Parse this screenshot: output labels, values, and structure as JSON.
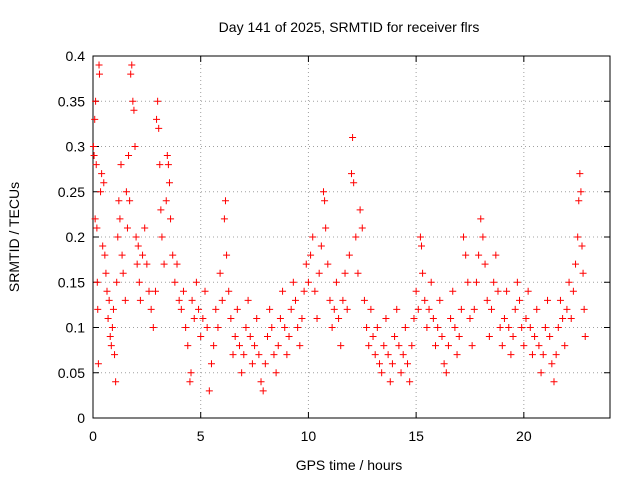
{
  "chart_data": {
    "type": "scatter",
    "title": "Day 141 of 2025, SRMTID for receiver flrs",
    "xlabel": "GPS time / hours",
    "ylabel": "SRMTID / TECUs",
    "xlim": [
      0,
      24
    ],
    "ylim": [
      0,
      0.4
    ],
    "xticks": [
      0,
      5,
      10,
      15,
      20
    ],
    "yticks": [
      0,
      0.05,
      0.1,
      0.15,
      0.2,
      0.25,
      0.3,
      0.35,
      0.4
    ],
    "xtick_labels": [
      "0",
      "5",
      "10",
      "15",
      "20"
    ],
    "ytick_labels": [
      "0",
      "0.05",
      "0.1",
      "0.15",
      "0.2",
      "0.25",
      "0.3",
      "0.35",
      "0.4"
    ],
    "grid": true,
    "marker": "plus",
    "color": "#ff0000",
    "series": [
      {
        "points": [
          [
            0.02,
            0.3
          ],
          [
            0.05,
            0.29
          ],
          [
            0.08,
            0.33
          ],
          [
            0.1,
            0.22
          ],
          [
            0.12,
            0.35
          ],
          [
            0.15,
            0.28
          ],
          [
            0.18,
            0.21
          ],
          [
            0.2,
            0.15
          ],
          [
            0.22,
            0.12
          ],
          [
            0.25,
            0.06
          ],
          [
            0.28,
            0.39
          ],
          [
            0.3,
            0.38
          ],
          [
            0.35,
            0.25
          ],
          [
            0.4,
            0.27
          ],
          [
            0.45,
            0.19
          ],
          [
            0.5,
            0.26
          ],
          [
            0.55,
            0.18
          ],
          [
            0.6,
            0.16
          ],
          [
            0.65,
            0.14
          ],
          [
            0.7,
            0.11
          ],
          [
            0.75,
            0.13
          ],
          [
            0.8,
            0.09
          ],
          [
            0.85,
            0.08
          ],
          [
            0.9,
            0.1
          ],
          [
            0.95,
            0.12
          ],
          [
            1.0,
            0.07
          ],
          [
            1.05,
            0.04
          ],
          [
            1.1,
            0.15
          ],
          [
            1.15,
            0.2
          ],
          [
            1.2,
            0.24
          ],
          [
            1.25,
            0.22
          ],
          [
            1.3,
            0.28
          ],
          [
            1.35,
            0.18
          ],
          [
            1.4,
            0.16
          ],
          [
            1.5,
            0.13
          ],
          [
            1.55,
            0.25
          ],
          [
            1.6,
            0.21
          ],
          [
            1.65,
            0.29
          ],
          [
            1.7,
            0.24
          ],
          [
            1.75,
            0.38
          ],
          [
            1.8,
            0.39
          ],
          [
            1.85,
            0.35
          ],
          [
            1.9,
            0.34
          ],
          [
            1.95,
            0.3
          ],
          [
            2.0,
            0.2
          ],
          [
            2.05,
            0.17
          ],
          [
            2.1,
            0.19
          ],
          [
            2.15,
            0.15
          ],
          [
            2.2,
            0.13
          ],
          [
            2.3,
            0.18
          ],
          [
            2.4,
            0.21
          ],
          [
            2.5,
            0.17
          ],
          [
            2.6,
            0.14
          ],
          [
            2.7,
            0.12
          ],
          [
            2.8,
            0.1
          ],
          [
            2.9,
            0.14
          ],
          [
            2.95,
            0.33
          ],
          [
            3.0,
            0.35
          ],
          [
            3.05,
            0.32
          ],
          [
            3.1,
            0.28
          ],
          [
            3.15,
            0.23
          ],
          [
            3.2,
            0.2
          ],
          [
            3.3,
            0.17
          ],
          [
            3.4,
            0.24
          ],
          [
            3.45,
            0.29
          ],
          [
            3.5,
            0.28
          ],
          [
            3.55,
            0.26
          ],
          [
            3.6,
            0.22
          ],
          [
            3.7,
            0.18
          ],
          [
            3.8,
            0.15
          ],
          [
            3.9,
            0.17
          ],
          [
            4.0,
            0.13
          ],
          [
            4.1,
            0.12
          ],
          [
            4.2,
            0.14
          ],
          [
            4.3,
            0.1
          ],
          [
            4.4,
            0.08
          ],
          [
            4.5,
            0.04
          ],
          [
            4.55,
            0.05
          ],
          [
            4.6,
            0.13
          ],
          [
            4.7,
            0.11
          ],
          [
            4.8,
            0.15
          ],
          [
            4.9,
            0.12
          ],
          [
            5.0,
            0.09
          ],
          [
            5.1,
            0.11
          ],
          [
            5.2,
            0.14
          ],
          [
            5.3,
            0.1
          ],
          [
            5.4,
            0.03
          ],
          [
            5.5,
            0.06
          ],
          [
            5.6,
            0.08
          ],
          [
            5.7,
            0.12
          ],
          [
            5.8,
            0.1
          ],
          [
            5.9,
            0.16
          ],
          [
            6.0,
            0.13
          ],
          [
            6.1,
            0.22
          ],
          [
            6.15,
            0.24
          ],
          [
            6.2,
            0.18
          ],
          [
            6.3,
            0.14
          ],
          [
            6.4,
            0.11
          ],
          [
            6.5,
            0.07
          ],
          [
            6.6,
            0.09
          ],
          [
            6.7,
            0.12
          ],
          [
            6.8,
            0.08
          ],
          [
            6.9,
            0.05
          ],
          [
            7.0,
            0.07
          ],
          [
            7.1,
            0.1
          ],
          [
            7.2,
            0.13
          ],
          [
            7.3,
            0.09
          ],
          [
            7.4,
            0.06
          ],
          [
            7.5,
            0.08
          ],
          [
            7.6,
            0.11
          ],
          [
            7.7,
            0.07
          ],
          [
            7.8,
            0.04
          ],
          [
            7.9,
            0.03
          ],
          [
            8.0,
            0.06
          ],
          [
            8.1,
            0.09
          ],
          [
            8.2,
            0.12
          ],
          [
            8.3,
            0.1
          ],
          [
            8.4,
            0.07
          ],
          [
            8.5,
            0.05
          ],
          [
            8.6,
            0.08
          ],
          [
            8.7,
            0.11
          ],
          [
            8.8,
            0.14
          ],
          [
            8.9,
            0.1
          ],
          [
            9.0,
            0.07
          ],
          [
            9.1,
            0.09
          ],
          [
            9.2,
            0.12
          ],
          [
            9.3,
            0.15
          ],
          [
            9.4,
            0.13
          ],
          [
            9.5,
            0.1
          ],
          [
            9.6,
            0.08
          ],
          [
            9.7,
            0.11
          ],
          [
            9.8,
            0.14
          ],
          [
            9.9,
            0.17
          ],
          [
            10.0,
            0.15
          ],
          [
            10.1,
            0.18
          ],
          [
            10.2,
            0.2
          ],
          [
            10.3,
            0.14
          ],
          [
            10.4,
            0.11
          ],
          [
            10.5,
            0.16
          ],
          [
            10.6,
            0.19
          ],
          [
            10.7,
            0.25
          ],
          [
            10.75,
            0.24
          ],
          [
            10.8,
            0.21
          ],
          [
            10.9,
            0.17
          ],
          [
            11.0,
            0.13
          ],
          [
            11.1,
            0.1
          ],
          [
            11.2,
            0.12
          ],
          [
            11.3,
            0.15
          ],
          [
            11.4,
            0.11
          ],
          [
            11.5,
            0.08
          ],
          [
            11.6,
            0.13
          ],
          [
            11.7,
            0.16
          ],
          [
            11.8,
            0.12
          ],
          [
            11.9,
            0.18
          ],
          [
            12.0,
            0.27
          ],
          [
            12.05,
            0.31
          ],
          [
            12.1,
            0.26
          ],
          [
            12.2,
            0.2
          ],
          [
            12.3,
            0.16
          ],
          [
            12.4,
            0.23
          ],
          [
            12.5,
            0.21
          ],
          [
            12.6,
            0.13
          ],
          [
            12.7,
            0.1
          ],
          [
            12.8,
            0.08
          ],
          [
            12.9,
            0.12
          ],
          [
            13.0,
            0.09
          ],
          [
            13.1,
            0.07
          ],
          [
            13.2,
            0.1
          ],
          [
            13.3,
            0.06
          ],
          [
            13.4,
            0.05
          ],
          [
            13.5,
            0.08
          ],
          [
            13.6,
            0.11
          ],
          [
            13.7,
            0.07
          ],
          [
            13.8,
            0.04
          ],
          [
            13.9,
            0.06
          ],
          [
            14.0,
            0.09
          ],
          [
            14.1,
            0.12
          ],
          [
            14.2,
            0.08
          ],
          [
            14.3,
            0.05
          ],
          [
            14.4,
            0.07
          ],
          [
            14.5,
            0.1
          ],
          [
            14.6,
            0.06
          ],
          [
            14.7,
            0.04
          ],
          [
            14.8,
            0.08
          ],
          [
            14.9,
            0.11
          ],
          [
            15.0,
            0.14
          ],
          [
            15.1,
            0.12
          ],
          [
            15.2,
            0.2
          ],
          [
            15.25,
            0.19
          ],
          [
            15.3,
            0.16
          ],
          [
            15.4,
            0.13
          ],
          [
            15.5,
            0.1
          ],
          [
            15.6,
            0.12
          ],
          [
            15.7,
            0.15
          ],
          [
            15.8,
            0.11
          ],
          [
            15.9,
            0.08
          ],
          [
            16.0,
            0.1
          ],
          [
            16.1,
            0.13
          ],
          [
            16.2,
            0.09
          ],
          [
            16.3,
            0.06
          ],
          [
            16.4,
            0.05
          ],
          [
            16.5,
            0.08
          ],
          [
            16.6,
            0.11
          ],
          [
            16.7,
            0.14
          ],
          [
            16.8,
            0.1
          ],
          [
            16.9,
            0.07
          ],
          [
            17.0,
            0.09
          ],
          [
            17.1,
            0.12
          ],
          [
            17.2,
            0.2
          ],
          [
            17.3,
            0.18
          ],
          [
            17.4,
            0.15
          ],
          [
            17.5,
            0.11
          ],
          [
            17.6,
            0.08
          ],
          [
            17.7,
            0.12
          ],
          [
            17.8,
            0.15
          ],
          [
            17.9,
            0.18
          ],
          [
            18.0,
            0.22
          ],
          [
            18.1,
            0.2
          ],
          [
            18.2,
            0.17
          ],
          [
            18.3,
            0.13
          ],
          [
            18.4,
            0.09
          ],
          [
            18.5,
            0.12
          ],
          [
            18.6,
            0.15
          ],
          [
            18.7,
            0.18
          ],
          [
            18.8,
            0.14
          ],
          [
            18.9,
            0.1
          ],
          [
            19.0,
            0.08
          ],
          [
            19.1,
            0.11
          ],
          [
            19.2,
            0.14
          ],
          [
            19.3,
            0.1
          ],
          [
            19.4,
            0.07
          ],
          [
            19.5,
            0.09
          ],
          [
            19.6,
            0.12
          ],
          [
            19.7,
            0.15
          ],
          [
            19.8,
            0.13
          ],
          [
            19.9,
            0.1
          ],
          [
            20.0,
            0.08
          ],
          [
            20.1,
            0.11
          ],
          [
            20.2,
            0.14
          ],
          [
            20.3,
            0.1
          ],
          [
            20.4,
            0.07
          ],
          [
            20.5,
            0.09
          ],
          [
            20.6,
            0.12
          ],
          [
            20.7,
            0.08
          ],
          [
            20.8,
            0.05
          ],
          [
            20.9,
            0.07
          ],
          [
            21.0,
            0.1
          ],
          [
            21.1,
            0.13
          ],
          [
            21.2,
            0.09
          ],
          [
            21.3,
            0.06
          ],
          [
            21.4,
            0.04
          ],
          [
            21.5,
            0.07
          ],
          [
            21.6,
            0.1
          ],
          [
            21.7,
            0.13
          ],
          [
            21.8,
            0.11
          ],
          [
            21.9,
            0.08
          ],
          [
            22.0,
            0.12
          ],
          [
            22.1,
            0.15
          ],
          [
            22.2,
            0.11
          ],
          [
            22.3,
            0.14
          ],
          [
            22.4,
            0.17
          ],
          [
            22.5,
            0.2
          ],
          [
            22.55,
            0.24
          ],
          [
            22.6,
            0.27
          ],
          [
            22.65,
            0.25
          ],
          [
            22.7,
            0.19
          ],
          [
            22.75,
            0.16
          ],
          [
            22.8,
            0.12
          ],
          [
            22.85,
            0.09
          ]
        ]
      }
    ]
  }
}
